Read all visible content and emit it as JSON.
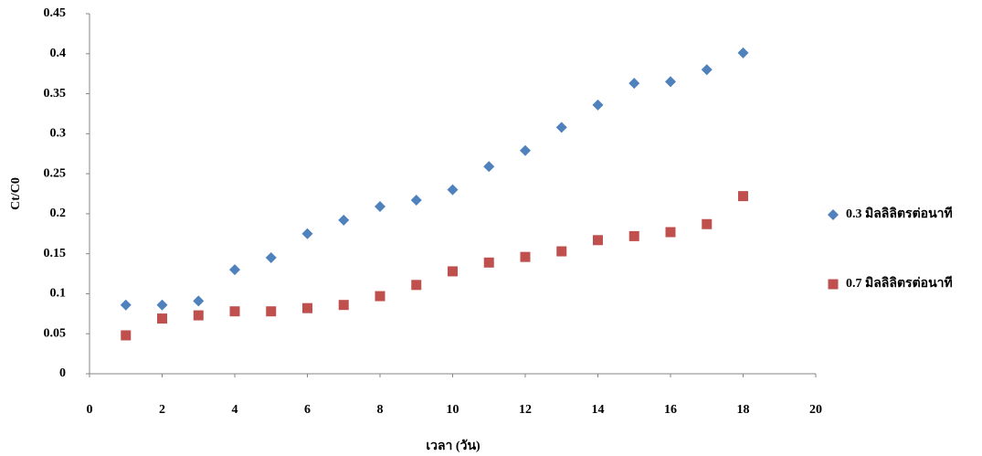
{
  "chart_data": {
    "type": "scatter",
    "xlabel": "เวลา (วัน)",
    "ylabel": "Ct/C0",
    "x": [
      1,
      2,
      3,
      4,
      5,
      6,
      7,
      8,
      9,
      10,
      11,
      12,
      13,
      14,
      15,
      16,
      17,
      18
    ],
    "series": [
      {
        "name": "0.3 มิลลิลิตรต่อนาที",
        "color": "#4f81bd",
        "marker": "diamond",
        "values": [
          0.086,
          0.086,
          0.091,
          0.13,
          0.145,
          0.175,
          0.192,
          0.209,
          0.217,
          0.23,
          0.259,
          0.279,
          0.308,
          0.336,
          0.363,
          0.365,
          0.38,
          0.401
        ]
      },
      {
        "name": "0.7 มิลลิลิตรต่อนาที",
        "color": "#c0504d",
        "marker": "square",
        "values": [
          0.048,
          0.069,
          0.073,
          0.078,
          0.078,
          0.082,
          0.086,
          0.097,
          0.111,
          0.128,
          0.139,
          0.146,
          0.153,
          0.167,
          0.172,
          0.177,
          0.187,
          0.222
        ]
      }
    ],
    "xlim": [
      0,
      20
    ],
    "xticks": [
      0,
      2,
      4,
      6,
      8,
      10,
      12,
      14,
      16,
      18,
      20
    ],
    "ylim": [
      0,
      0.45
    ],
    "yticks": [
      0,
      0.05,
      0.1,
      0.15,
      0.2,
      0.25,
      0.3,
      0.35,
      0.4,
      0.45
    ],
    "grid": false,
    "legend": "right"
  }
}
